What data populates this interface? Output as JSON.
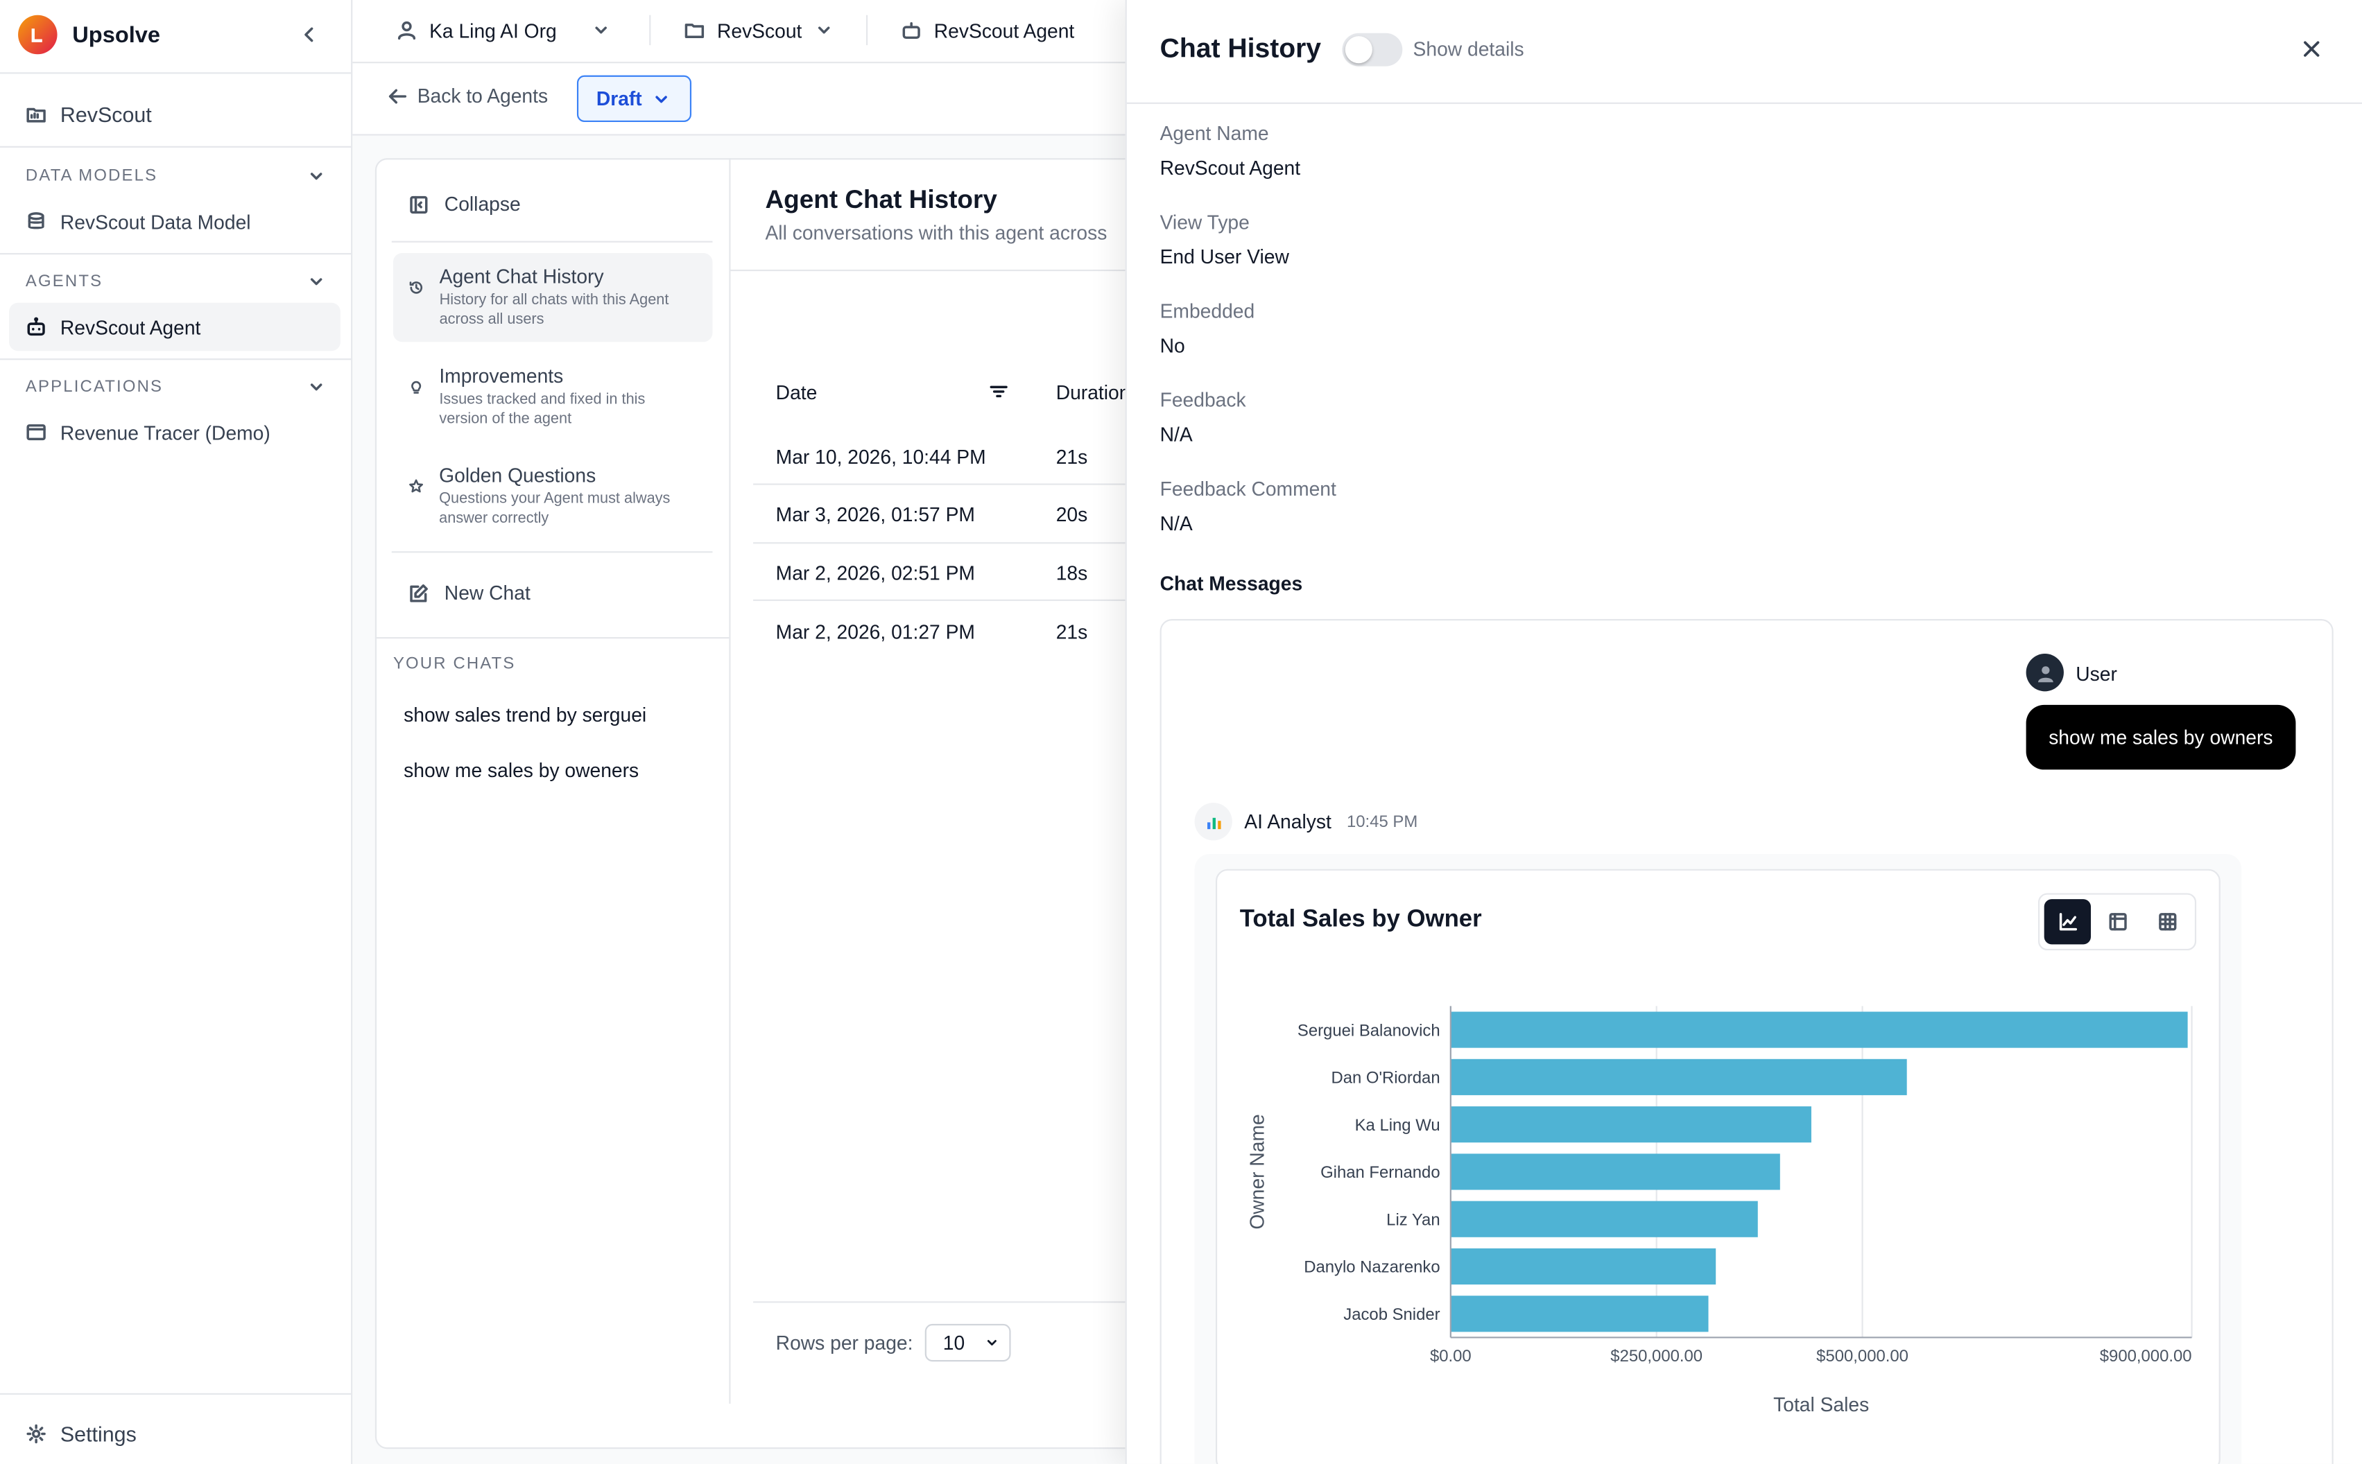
{
  "sidebar": {
    "brand": "Upsolve",
    "workspace": "RevScout",
    "sections": {
      "data_models": "DATA MODELS",
      "agents": "AGENTS",
      "applications": "APPLICATIONS"
    },
    "data_model_item": "RevScout Data Model",
    "agent_item": "RevScout Agent",
    "application_item": "Revenue Tracer (Demo)",
    "settings": "Settings"
  },
  "topbar": {
    "org": "Ka Ling AI Org",
    "project": "RevScout",
    "agent": "RevScout Agent"
  },
  "toolbar": {
    "back": "Back to Agents",
    "draft": "Draft"
  },
  "agent_nav": {
    "collapse": "Collapse",
    "items": [
      {
        "title": "Agent Chat History",
        "desc": "History for all chats with this Agent across all users"
      },
      {
        "title": "Improvements",
        "desc": "Issues tracked and fixed in this version of the agent"
      },
      {
        "title": "Golden Questions",
        "desc": "Questions your Agent must always answer correctly"
      }
    ],
    "new_chat": "New Chat",
    "your_chats_label": "YOUR CHATS",
    "chats": [
      "show sales trend by serguei",
      "show me sales by oweners"
    ]
  },
  "history": {
    "title": "Agent Chat History",
    "subtitle": "All conversations with this agent across",
    "columns": {
      "date": "Date",
      "duration": "Duration"
    },
    "rows": [
      {
        "date": "Mar 10, 2026, 10:44 PM",
        "duration": "21s"
      },
      {
        "date": "Mar 3, 2026, 01:57 PM",
        "duration": "20s"
      },
      {
        "date": "Mar 2, 2026, 02:51 PM",
        "duration": "18s"
      },
      {
        "date": "Mar 2, 2026, 01:27 PM",
        "duration": "21s"
      }
    ],
    "rows_per_page_label": "Rows per page:",
    "rows_per_page_value": "10"
  },
  "panel": {
    "title": "Chat History",
    "show_details": "Show details",
    "fields": [
      {
        "label": "Agent Name",
        "value": "RevScout Agent"
      },
      {
        "label": "View Type",
        "value": "End User View"
      },
      {
        "label": "Embedded",
        "value": "No"
      },
      {
        "label": "Feedback",
        "value": "N/A"
      },
      {
        "label": "Feedback Comment",
        "value": "N/A"
      }
    ],
    "chat_messages_label": "Chat Messages",
    "user_name": "User",
    "user_message": "show me sales by owners",
    "ai_name": "AI Analyst",
    "ai_time": "10:45 PM"
  },
  "chart_data": {
    "type": "bar",
    "orientation": "horizontal",
    "title": "Total Sales by Owner",
    "xlabel": "Total Sales",
    "ylabel": "Owner Name",
    "categories": [
      "Serguei Balanovich",
      "Dan O'Riordan",
      "Ka Ling Wu",
      "Gihan Fernando",
      "Liz Yan",
      "Danylo Nazarenko",
      "Jacob Snider"
    ],
    "values": [
      895000,
      554000,
      438000,
      400000,
      373000,
      322000,
      313000
    ],
    "xticks": [
      0,
      250000,
      500000,
      900000
    ],
    "xtick_labels": [
      "$0.00",
      "$250,000.00",
      "$500,000.00",
      "$900,000.00"
    ],
    "xlim": [
      0,
      900000
    ],
    "bar_color": "#4fb3d4",
    "grid": true
  },
  "colors": {
    "accent": "#3b82f6",
    "bar": "#4fb3d4"
  }
}
